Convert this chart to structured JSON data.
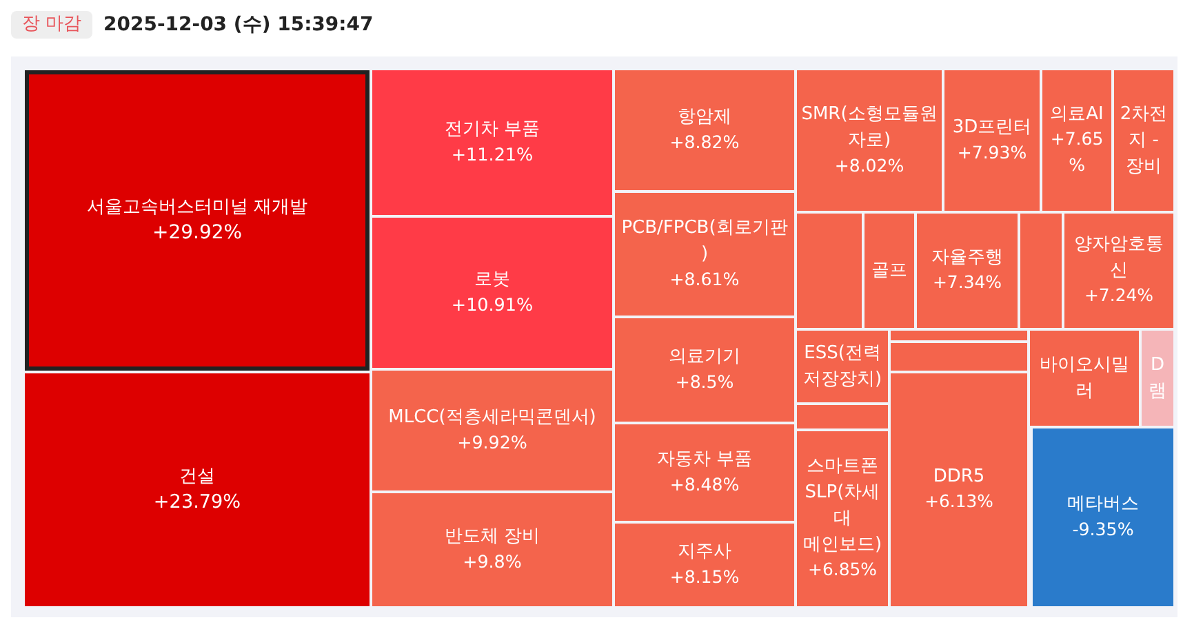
{
  "chart_data": {
    "type": "other",
    "title": "2025-12-03 (수) 15:39:47",
    "annotations": [
      "장 마감"
    ],
    "categories": [
      "서울고속버스터미널 재개발",
      "건설",
      "전기차 부품",
      "로봇",
      "MLCC(적층세라믹콘덴서)",
      "반도체 장비",
      "항암제",
      "PCB/FPCB(회로기판)",
      "의료기기",
      "자동차 부품",
      "지주사",
      "SMR(소형모듈원자로)",
      "3D프린터",
      "의료AI",
      "2차전지 - 장비",
      null,
      "골프",
      "자율주행",
      null,
      "양자암호통신",
      "ESS(전력저장장치)",
      null,
      "스마트폰 SLP(차세대 메인보드)",
      null,
      null,
      "DDR5",
      "바이오시밀러",
      "D램",
      "메타버스"
    ],
    "values": [
      29.92,
      23.79,
      11.21,
      10.91,
      9.92,
      9.8,
      8.82,
      8.61,
      8.5,
      8.48,
      8.15,
      8.02,
      7.93,
      7.65,
      null,
      null,
      null,
      7.34,
      null,
      7.24,
      null,
      null,
      6.85,
      null,
      null,
      6.13,
      null,
      null,
      -9.35
    ],
    "value_labels": [
      "+29.92%",
      "+23.79%",
      "+11.21%",
      "+10.91%",
      "+9.92%",
      "+9.8%",
      "+8.82%",
      "+8.61%",
      "+8.5%",
      "+8.48%",
      "+8.15%",
      "+8.02%",
      "+7.93%",
      "+7.65%",
      null,
      null,
      null,
      "+7.34%",
      null,
      "+7.24%",
      null,
      null,
      "+6.85%",
      null,
      null,
      "+6.13%",
      null,
      null,
      "-9.35%"
    ],
    "colors": [
      "#dd0000",
      "#dd0000",
      "#ff3b47",
      "#ff3b47",
      "#f4644c",
      "#f4644c",
      "#f4644c",
      "#f4644c",
      "#f4644c",
      "#f4644c",
      "#f4644c",
      "#f4644c",
      "#f4644c",
      "#f4644c",
      "#f4644c",
      "#f4644c",
      "#f4644c",
      "#f4644c",
      "#f4644c",
      "#f4644c",
      "#f4644c",
      "#f4644c",
      "#f4644c",
      "#f4644c",
      "#f4644c",
      "#f4644c",
      "#f4644c",
      "#f5b5b8",
      "#2a7bcb"
    ]
  }
}
